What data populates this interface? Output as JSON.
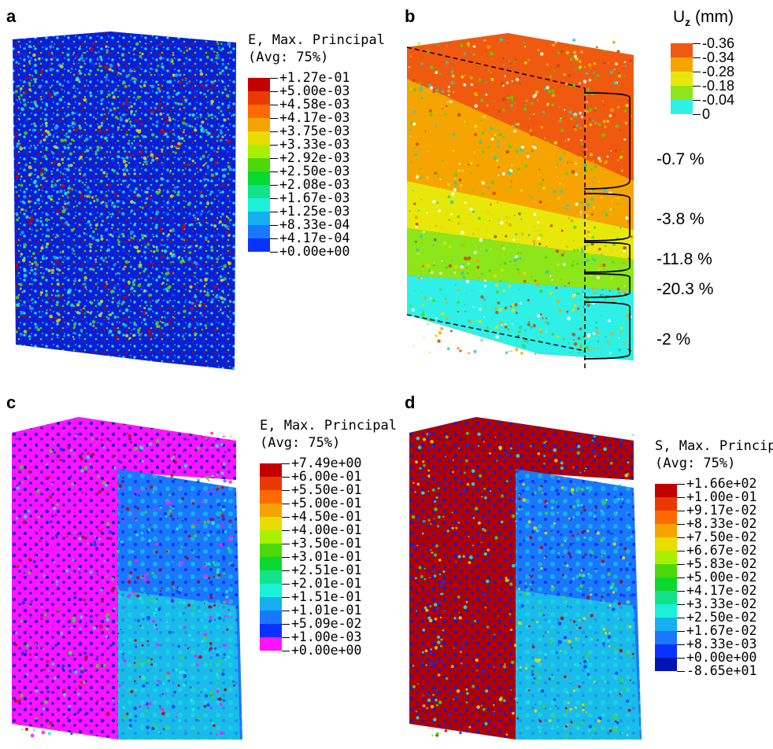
{
  "panels": {
    "a": {
      "letter": "a"
    },
    "b": {
      "letter": "b"
    },
    "c": {
      "letter": "c"
    },
    "d": {
      "letter": "d"
    }
  },
  "legend_a": {
    "title1": "E, Max. Principal",
    "title2": "(Avg: 75%)",
    "ticks": [
      "+1.27e-01",
      "+5.00e-03",
      "+4.58e-03",
      "+4.17e-03",
      "+3.75e-03",
      "+3.33e-03",
      "+2.92e-03",
      "+2.50e-03",
      "+2.08e-03",
      "+1.67e-03",
      "+1.25e-03",
      "+8.33e-04",
      "+4.17e-04",
      "+0.00e+00"
    ],
    "colors": [
      "#c40000",
      "#e83a00",
      "#ff6a00",
      "#f5a300",
      "#e8dc00",
      "#a8f000",
      "#4cd80a",
      "#0ad830",
      "#12e38a",
      "#1bf0d8",
      "#16b0f0",
      "#1a78ff",
      "#0a32ff"
    ]
  },
  "legend_b": {
    "title_main": "U",
    "title_sub": "z",
    "title_unit": " (mm)",
    "ticks": [
      "-0.36",
      "-0.34",
      "-0.28",
      "-0.18",
      "-0.04",
      "0"
    ],
    "colors": [
      "#f05a10",
      "#f5a400",
      "#e7e80a",
      "#8ce61a",
      "#2ef0e6"
    ]
  },
  "percents": [
    "-0.7 %",
    "-3.8 %",
    "-11.8 %",
    "-20.3 %",
    "-2 %"
  ],
  "legend_c": {
    "title1": "E, Max. Principal",
    "title2": "(Avg: 75%)",
    "ticks": [
      "+7.49e+00",
      "+6.00e-01",
      "+5.50e-01",
      "+5.00e-01",
      "+4.50e-01",
      "+4.00e-01",
      "+3.50e-01",
      "+3.01e-01",
      "+2.51e-01",
      "+2.01e-01",
      "+1.51e-01",
      "+1.01e-01",
      "+5.09e-02",
      "+1.00e-03",
      "+0.00e+00"
    ],
    "colors": [
      "#c40000",
      "#e83a00",
      "#ff6a00",
      "#f5a300",
      "#e8dc00",
      "#a8f000",
      "#4cd80a",
      "#0ad830",
      "#12e38a",
      "#1bf0d8",
      "#16b0f0",
      "#1a78ff",
      "#0a32ff",
      "#ff14ff"
    ]
  },
  "legend_d": {
    "title1": "S, Max. Principal",
    "title2": "(Avg: 75%)",
    "ticks": [
      "+1.66e+02",
      "+1.00e-01",
      "+9.17e-02",
      "+8.33e-02",
      "+7.50e-02",
      "+6.67e-02",
      "+5.83e-02",
      "+5.00e-02",
      "+4.17e-02",
      "+3.33e-02",
      "+2.50e-02",
      "+1.67e-02",
      "+8.33e-03",
      "+0.00e+00",
      "-8.65e+01"
    ],
    "colors": [
      "#c40000",
      "#e83a00",
      "#ff6a00",
      "#f5a300",
      "#e8dc00",
      "#a8f000",
      "#4cd80a",
      "#0ad830",
      "#12e38a",
      "#1bf0d8",
      "#16b0f0",
      "#1a78ff",
      "#0a32ff",
      "#0014b4"
    ]
  }
}
